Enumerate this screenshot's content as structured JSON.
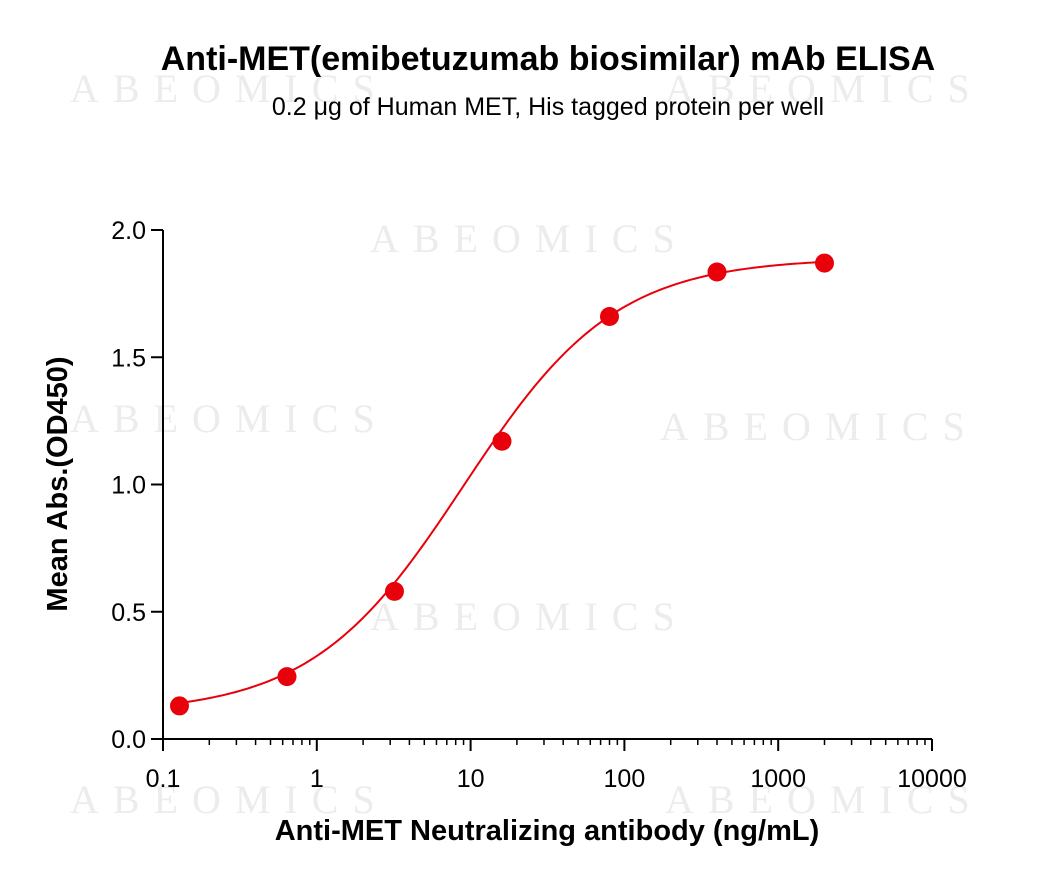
{
  "chart_data": {
    "type": "scatter",
    "title": "Anti-MET(emibetuzumab biosimilar) mAb ELISA",
    "subtitle": "0.2 μg of Human MET, His tagged protein per well",
    "xlabel": "Anti-MET Neutralizing antibody (ng/mL)",
    "ylabel": "Mean Abs.(OD450)",
    "xscale": "log",
    "xlim": [
      0.1,
      10000
    ],
    "ylim": [
      0.0,
      2.0
    ],
    "x_ticks": [
      "0.1",
      "1",
      "10",
      "100",
      "1000",
      "10000"
    ],
    "y_ticks": [
      "0.0",
      "0.5",
      "1.0",
      "1.5",
      "2.0"
    ],
    "grid": false,
    "legend": "none",
    "watermark": "ABEOMICS",
    "series": [
      {
        "x": [
          0.128,
          0.64,
          3.2,
          16,
          80,
          400,
          2000
        ],
        "y": [
          0.13,
          0.245,
          0.58,
          1.17,
          1.66,
          1.835,
          1.87
        ],
        "color": "#e8000b",
        "fit_curve": "4PL"
      }
    ]
  }
}
